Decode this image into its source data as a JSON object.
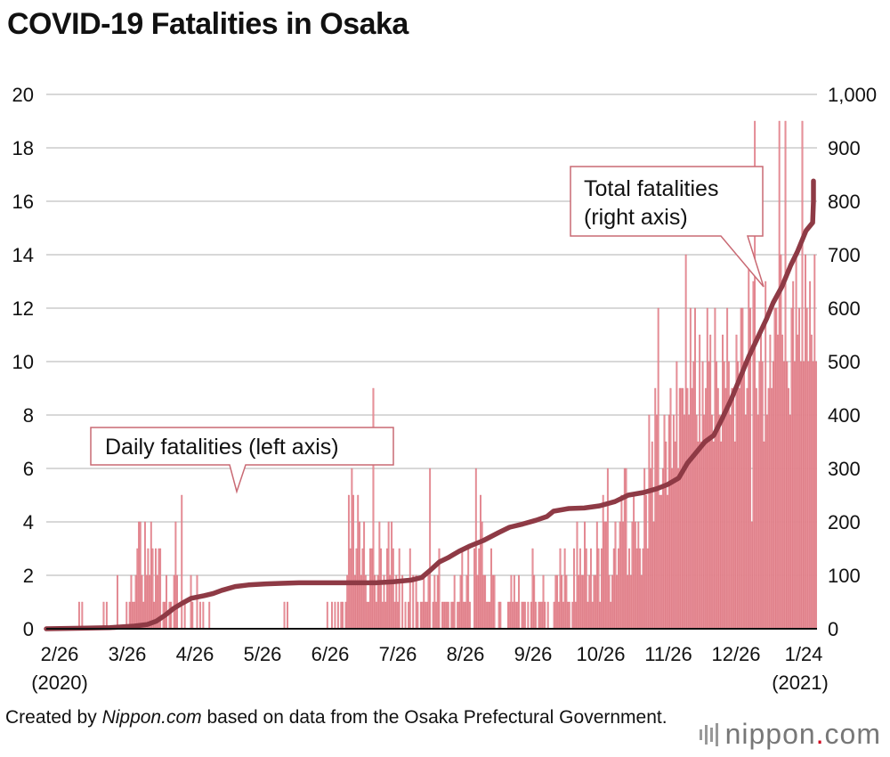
{
  "title": "COVID-19 Fatalities in Osaka",
  "source": {
    "prefix": "Created by ",
    "brand": "Nippon.com",
    "suffix": " based on data from the Osaka Prefectural Government."
  },
  "logo": {
    "main": "nippon",
    "dot": ".",
    "tld": "com"
  },
  "colors": {
    "bar": "#e8919a",
    "bar_edge": "#d9707b",
    "line": "#8e3a45",
    "grid": "#cccccc",
    "callout_border": "#c96a74"
  },
  "chart_data": {
    "type": "bar+line",
    "x_tick_labels": [
      "2/26",
      "3/26",
      "4/26",
      "5/26",
      "6/26",
      "7/26",
      "8/26",
      "9/26",
      "10/26",
      "11/26",
      "12/26",
      "1/24"
    ],
    "x_tick_year_labels": {
      "first": "(2020)",
      "last": "(2021)"
    },
    "date_range": [
      "2020-02-26",
      "2021-01-24"
    ],
    "left_axis": {
      "ylim": [
        0,
        20
      ],
      "ticks": [
        "0",
        "2",
        "4",
        "6",
        "8",
        "10",
        "12",
        "14",
        "16",
        "18",
        "20"
      ]
    },
    "right_axis": {
      "ylim": [
        0,
        1000
      ],
      "ticks": [
        "0",
        "100",
        "200",
        "300",
        "400",
        "500",
        "600",
        "700",
        "800",
        "900",
        "1,000"
      ]
    },
    "grid": true,
    "annotations": {
      "daily": "Daily fatalities (left axis)",
      "total_line1": "Total fatalities",
      "total_line2": "(right axis)"
    },
    "series": [
      {
        "name": "Daily fatalities (left axis)",
        "type": "bar",
        "axis": "left",
        "values": [
          0,
          0,
          0,
          0,
          0,
          0,
          0,
          0,
          0,
          0,
          0,
          0,
          0,
          0,
          0,
          0,
          0,
          0,
          0,
          0,
          0,
          1,
          0,
          1,
          0,
          0,
          0,
          0,
          0,
          0,
          0,
          0,
          0,
          0,
          0,
          0,
          0,
          1,
          0,
          1,
          0,
          0,
          0,
          0,
          0,
          0,
          2,
          0,
          0,
          0,
          0,
          0,
          1,
          0,
          1,
          2,
          1,
          1,
          2,
          3,
          4,
          4,
          2,
          1,
          4,
          2,
          3,
          2,
          4,
          3,
          1,
          3,
          2,
          3,
          3,
          0,
          1,
          1,
          2,
          0,
          1,
          1,
          0,
          2,
          4,
          2,
          0,
          0,
          5,
          0,
          1,
          0,
          0,
          0,
          2,
          1,
          0,
          0,
          2,
          0,
          1,
          0,
          1,
          0,
          0,
          0,
          1,
          0,
          0,
          0,
          0,
          0,
          0,
          0,
          0,
          0,
          0,
          0,
          0,
          0,
          0,
          0,
          0,
          0,
          0,
          0,
          0,
          0,
          0,
          0,
          0,
          0,
          0,
          0,
          0,
          0,
          0,
          0,
          0,
          0,
          0,
          0,
          0,
          0,
          0,
          0,
          0,
          0,
          0,
          0,
          0,
          0,
          0,
          0,
          0,
          1,
          0,
          1,
          0,
          0,
          0,
          0,
          0,
          0,
          0,
          0,
          0,
          0,
          0,
          0,
          0,
          0,
          0,
          0,
          0,
          0,
          0,
          0,
          0,
          0,
          0,
          0,
          0,
          1,
          0,
          0,
          1,
          0,
          1,
          0,
          1,
          0,
          1,
          1,
          0,
          1,
          2,
          5,
          3,
          6,
          5,
          2,
          3,
          5,
          4,
          2,
          3,
          4,
          2,
          1,
          1,
          3,
          3,
          9,
          2,
          1,
          2,
          4,
          3,
          1,
          2,
          1,
          3,
          4,
          2,
          4,
          3,
          1,
          2,
          1,
          3,
          0,
          2,
          0,
          1,
          0,
          1,
          3,
          0,
          2,
          0,
          2,
          1,
          0,
          1,
          1,
          2,
          1,
          1,
          2,
          6,
          0,
          1,
          2,
          1,
          2,
          3,
          0,
          1,
          1,
          1,
          1,
          1,
          0,
          1,
          1,
          2,
          0,
          1,
          1,
          2,
          3,
          1,
          1,
          2,
          3,
          1,
          0,
          0,
          3,
          6,
          2,
          3,
          5,
          4,
          2,
          2,
          1,
          1,
          1,
          3,
          2,
          2,
          0,
          0,
          1,
          1,
          0,
          0,
          0,
          0,
          1,
          1,
          2,
          1,
          2,
          1,
          1,
          2,
          0,
          1,
          1,
          1,
          0,
          1,
          0,
          1,
          3,
          2,
          1,
          0,
          1,
          1,
          1,
          2,
          1,
          0,
          1,
          0,
          0,
          0,
          1,
          2,
          2,
          1,
          3,
          2,
          1,
          3,
          2,
          1,
          1,
          0,
          1,
          3,
          1,
          4,
          2,
          3,
          2,
          2,
          4,
          3,
          1,
          2,
          3,
          1,
          2,
          2,
          4,
          3,
          1,
          3,
          5,
          4,
          4,
          6,
          2,
          1,
          2,
          3,
          4,
          2,
          3,
          4,
          5,
          4,
          6,
          6,
          2,
          3,
          2,
          4,
          5,
          4,
          3,
          4,
          3,
          2,
          3,
          6,
          5,
          3,
          8,
          6,
          7,
          4,
          9,
          8,
          12,
          5,
          5,
          6,
          8,
          7,
          5,
          8,
          9,
          6,
          8,
          7,
          10,
          6,
          9,
          9,
          9,
          8,
          14,
          9,
          8,
          12,
          9,
          10,
          12,
          8,
          7,
          11,
          7,
          10,
          8,
          9,
          12,
          10,
          11,
          8,
          7,
          12,
          10,
          9,
          8,
          7,
          11,
          10,
          9,
          12,
          10,
          8,
          9,
          9,
          7,
          11,
          10,
          9,
          12,
          12,
          10,
          8,
          9,
          14,
          12,
          4,
          13,
          19,
          9,
          8,
          10,
          11,
          10,
          7,
          13,
          8,
          9,
          11,
          9,
          10,
          12,
          12,
          11,
          19,
          14,
          11,
          10,
          19,
          10,
          9,
          8,
          12,
          13,
          10,
          14,
          11,
          12,
          10,
          19,
          10,
          14,
          12,
          10,
          13,
          11,
          10,
          14,
          10
        ]
      },
      {
        "name": "Total fatalities (right axis)",
        "type": "line",
        "axis": "right",
        "points": [
          [
            "2020-02-26",
            0
          ],
          [
            "2020-03-13",
            1
          ],
          [
            "2020-03-26",
            2
          ],
          [
            "2020-04-06",
            5
          ],
          [
            "2020-04-12",
            8
          ],
          [
            "2020-04-16",
            14
          ],
          [
            "2020-04-20",
            25
          ],
          [
            "2020-04-24",
            38
          ],
          [
            "2020-04-28",
            48
          ],
          [
            "2020-05-02",
            57
          ],
          [
            "2020-05-08",
            62
          ],
          [
            "2020-05-12",
            66
          ],
          [
            "2020-05-16",
            72
          ],
          [
            "2020-05-22",
            79
          ],
          [
            "2020-05-28",
            82
          ],
          [
            "2020-06-05",
            84
          ],
          [
            "2020-06-12",
            85
          ],
          [
            "2020-06-20",
            86
          ],
          [
            "2020-07-05",
            86
          ],
          [
            "2020-07-25",
            86
          ],
          [
            "2020-08-02",
            88
          ],
          [
            "2020-08-10",
            91
          ],
          [
            "2020-08-15",
            96
          ],
          [
            "2020-08-19",
            110
          ],
          [
            "2020-08-23",
            125
          ],
          [
            "2020-08-27",
            133
          ],
          [
            "2020-09-01",
            145
          ],
          [
            "2020-09-06",
            155
          ],
          [
            "2020-09-12",
            165
          ],
          [
            "2020-09-19",
            180
          ],
          [
            "2020-09-24",
            190
          ],
          [
            "2020-09-30",
            196
          ],
          [
            "2020-10-06",
            203
          ],
          [
            "2020-10-11",
            210
          ],
          [
            "2020-10-14",
            220
          ],
          [
            "2020-10-21",
            225
          ],
          [
            "2020-10-28",
            226
          ],
          [
            "2020-11-04",
            230
          ],
          [
            "2020-11-11",
            238
          ],
          [
            "2020-11-17",
            250
          ],
          [
            "2020-11-24",
            255
          ],
          [
            "2020-11-30",
            262
          ],
          [
            "2020-12-05",
            270
          ],
          [
            "2020-12-10",
            282
          ],
          [
            "2020-12-14",
            310
          ],
          [
            "2020-12-18",
            330
          ],
          [
            "2020-12-22",
            350
          ],
          [
            "2020-12-26",
            362
          ],
          [
            "2020-12-30",
            395
          ],
          [
            "2021-01-03",
            430
          ],
          [
            "2021-01-07",
            470
          ],
          [
            "2021-01-11",
            510
          ],
          [
            "2021-01-15",
            545
          ],
          [
            "2021-01-19",
            580
          ],
          [
            "2021-01-22",
            610
          ],
          [
            "2021-01-26",
            640
          ],
          [
            "2021-01-30",
            680
          ],
          [
            "2021-02-02",
            705
          ],
          [
            "2021-02-06",
            745
          ],
          [
            "2021-02-09",
            760
          ],
          [
            "2021-02-12",
            800
          ],
          [
            "2021-02-14",
            838
          ]
        ]
      }
    ]
  }
}
